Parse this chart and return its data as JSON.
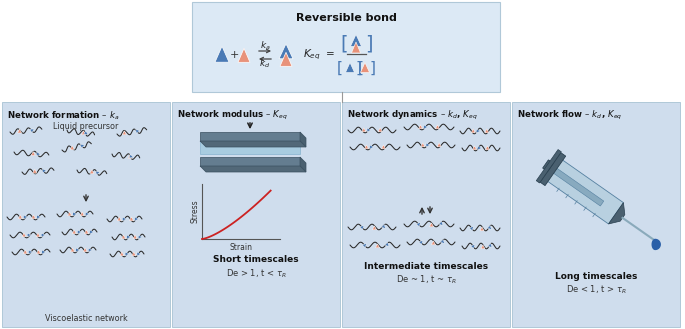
{
  "title": "Reversible bond",
  "bg_top": "#dce9f5",
  "bg_panels": "#cfdded",
  "panel_edge": "#b0c8d8",
  "blue_color": "#4a7ab5",
  "pink_color": "#e8927a",
  "dark_text": "#111111",
  "mid_text": "#333333",
  "stress_label": "Stress",
  "strain_label": "Strain",
  "liquid_precursor": "Liquid precursor",
  "viscoelastic_network": "Viscoelastic network",
  "panel_subtitles": [
    "Short timescales",
    "Intermediate timescales",
    "Long timescales"
  ],
  "panel_sub_math": [
    "De > 1, t < τ_R",
    "De ~ 1, t ~ τ_R",
    "De < 1, t > τ_R"
  ],
  "figw": 6.85,
  "figh": 3.29,
  "dpi": 100
}
